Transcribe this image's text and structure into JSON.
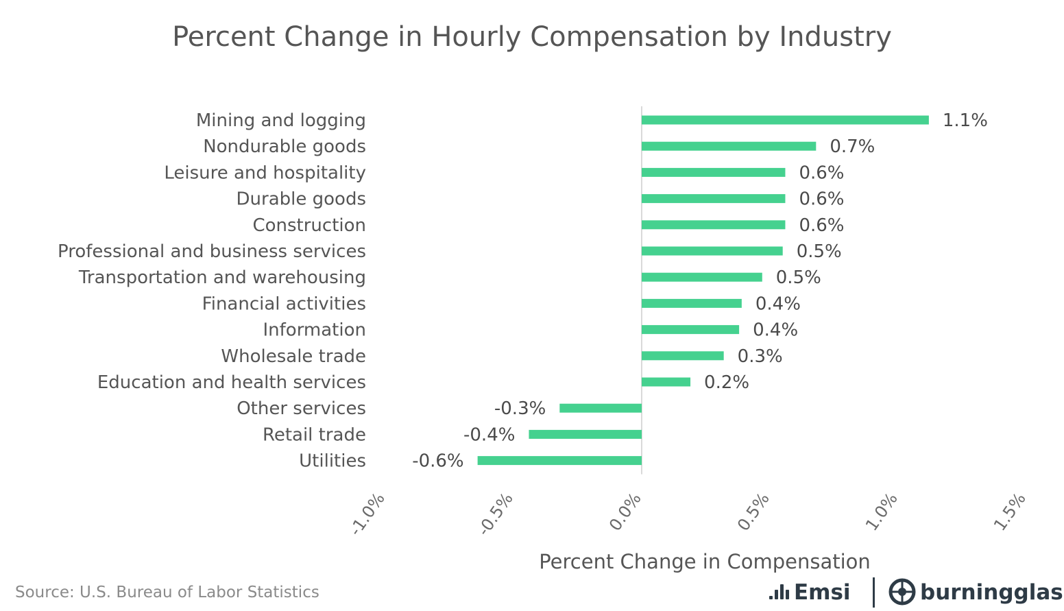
{
  "chart_data": {
    "type": "bar",
    "orientation": "horizontal",
    "title": "Percent Change in Hourly Compensation by Industry",
    "xlabel": "Percent Change in Compensation",
    "ylabel": "",
    "xlim": [
      -1.0,
      1.5
    ],
    "x_ticks": [
      -1.0,
      -0.5,
      0.0,
      0.5,
      1.0,
      1.5
    ],
    "x_tick_labels": [
      "-1.0%",
      "-0.5%",
      "0.0%",
      "0.5%",
      "1.0%",
      "1.5%"
    ],
    "grid": false,
    "categories": [
      "Mining and logging",
      "Nondurable goods",
      "Leisure and hospitality",
      "Durable goods",
      "Construction",
      "Professional and business services",
      "Transportation and warehousing",
      "Financial activities",
      "Information",
      "Wholesale trade",
      "Education and health services",
      "Other services",
      "Retail trade",
      "Utilities"
    ],
    "values": [
      1.12,
      0.68,
      0.56,
      0.56,
      0.56,
      0.55,
      0.47,
      0.39,
      0.38,
      0.32,
      0.19,
      -0.32,
      -0.44,
      -0.64
    ],
    "data_labels": [
      "1.1%",
      "0.7%",
      "0.6%",
      "0.6%",
      "0.6%",
      "0.5%",
      "0.5%",
      "0.4%",
      "0.4%",
      "0.3%",
      "0.2%",
      "-0.3%",
      "-0.4%",
      "-0.6%"
    ],
    "bar_color": "#45d18f",
    "source": "Source:  U.S. Bureau of Labor Statistics"
  },
  "logos": {
    "emsi": "Emsi",
    "burningglass": "burningglass"
  },
  "colors": {
    "bar": "#45d18f",
    "axis_line": "#d9d9d9",
    "brand_text": "#2e3b46"
  }
}
